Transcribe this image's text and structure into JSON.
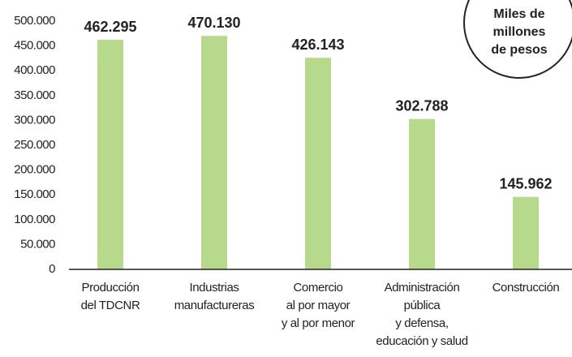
{
  "chart_data": {
    "type": "bar",
    "categories": [
      [
        "Producción",
        "del TDCNR"
      ],
      [
        "Industrias",
        "manufactureras"
      ],
      [
        "Comercio",
        "al por mayor",
        "y al por menor"
      ],
      [
        "Administración",
        "pública",
        "y defensa,",
        "educación y salud"
      ],
      [
        "Construcción"
      ]
    ],
    "values": [
      462295,
      470130,
      426143,
      302788,
      145962
    ],
    "value_labels": [
      "462.295",
      "470.130",
      "426.143",
      "302.788",
      "145.962"
    ],
    "color": "#b6d98b",
    "ylim": [
      0,
      500000
    ],
    "yticks": [
      0,
      {
        "value": 50000,
        "label": "50.000"
      },
      {
        "value": 100000,
        "label": "100.000"
      },
      {
        "value": 150000,
        "label": "150.000"
      },
      {
        "value": 200000,
        "label": "200.000"
      },
      {
        "value": 250000,
        "label": "250.000"
      },
      {
        "value": 300000,
        "label": "300.000"
      },
      {
        "value": 350000,
        "label": "350.000"
      },
      {
        "value": 400000,
        "label": "400.000"
      },
      {
        "value": 450000,
        "label": "450.000"
      },
      {
        "value": 500000,
        "label": "500.000"
      }
    ],
    "annotation": [
      "Miles de",
      "millones",
      "de pesos"
    ]
  }
}
